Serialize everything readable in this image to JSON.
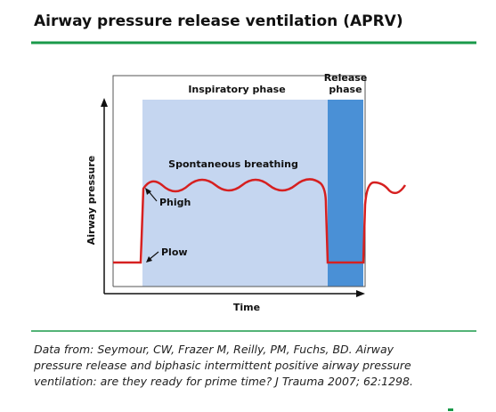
{
  "header": {
    "title": "Airway pressure release ventilation (APRV)"
  },
  "diagram": {
    "inspiratory_label": "Inspiratory phase",
    "release_label": [
      "Release",
      "phase"
    ],
    "spontaneous_label": "Spontaneous breathing",
    "phigh_label": "Phigh",
    "plow_label": "Plow",
    "y_axis_label": "Airway pressure",
    "x_axis_label": "Time"
  },
  "citation": [
    "Data from: Seymour, CW, Frazer M, Reilly, PM, Fuchs, BD. Airway",
    "pressure release and biphasic intermittent positive airway pressure",
    "ventilation: are they ready for prime time? J Trauma 2007; 62:1298."
  ]
}
